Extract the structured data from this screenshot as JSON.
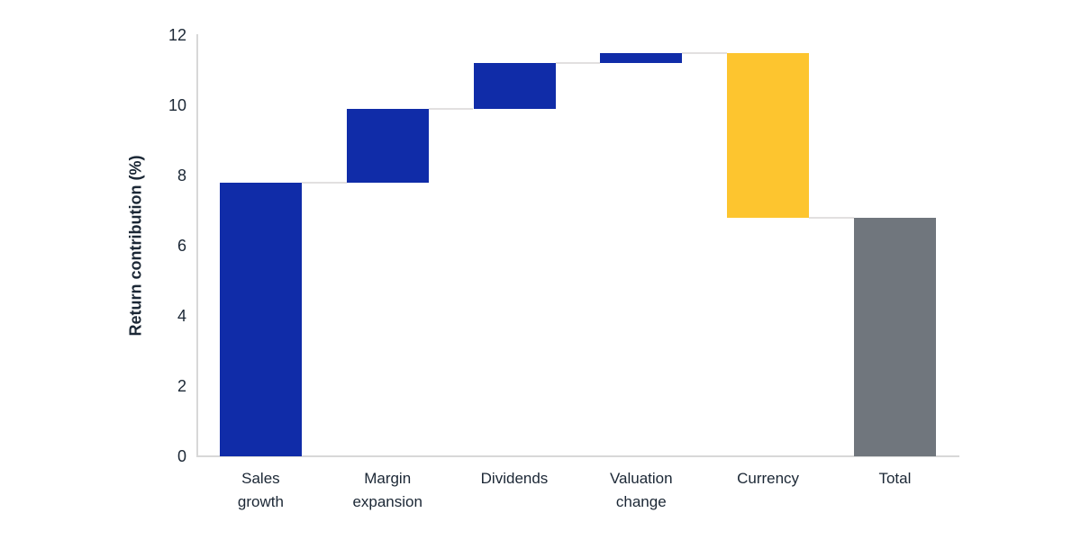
{
  "chart_data": {
    "type": "bar",
    "subtype": "waterfall",
    "title": "",
    "xlabel": "",
    "ylabel": "Return contribution (%)",
    "ylim": [
      0,
      12
    ],
    "yticks": [
      0,
      2,
      4,
      6,
      8,
      10,
      12
    ],
    "grid": false,
    "legend": "none",
    "categories": [
      "Sales growth",
      "Margin expansion",
      "Dividends",
      "Valuation change",
      "Currency",
      "Total"
    ],
    "steps": [
      {
        "name": "Sales growth",
        "label_lines": [
          "Sales",
          "growth"
        ],
        "start": 0,
        "end": 7.8,
        "delta": 7.8,
        "color_key": "contribution"
      },
      {
        "name": "Margin expansion",
        "label_lines": [
          "Margin",
          "expansion"
        ],
        "start": 7.8,
        "end": 9.9,
        "delta": 2.1,
        "color_key": "contribution"
      },
      {
        "name": "Dividends",
        "label_lines": [
          "Dividends"
        ],
        "start": 9.9,
        "end": 11.2,
        "delta": 1.3,
        "color_key": "contribution"
      },
      {
        "name": "Valuation change",
        "label_lines": [
          "Valuation",
          "change"
        ],
        "start": 11.2,
        "end": 11.5,
        "delta": 0.3,
        "color_key": "contribution"
      },
      {
        "name": "Currency",
        "label_lines": [
          "Currency"
        ],
        "start": 11.5,
        "end": 6.8,
        "delta": -4.7,
        "color_key": "negative"
      },
      {
        "name": "Total",
        "label_lines": [
          "Total"
        ],
        "start": 0,
        "end": 6.8,
        "delta": 6.8,
        "color_key": "total"
      }
    ],
    "colors": {
      "contribution": "#102ca8",
      "negative": "#fdc52f",
      "total": "#70767d",
      "connector": "#e2e0e0",
      "axis": "#d8d8d8",
      "text": "#1b2735"
    }
  }
}
